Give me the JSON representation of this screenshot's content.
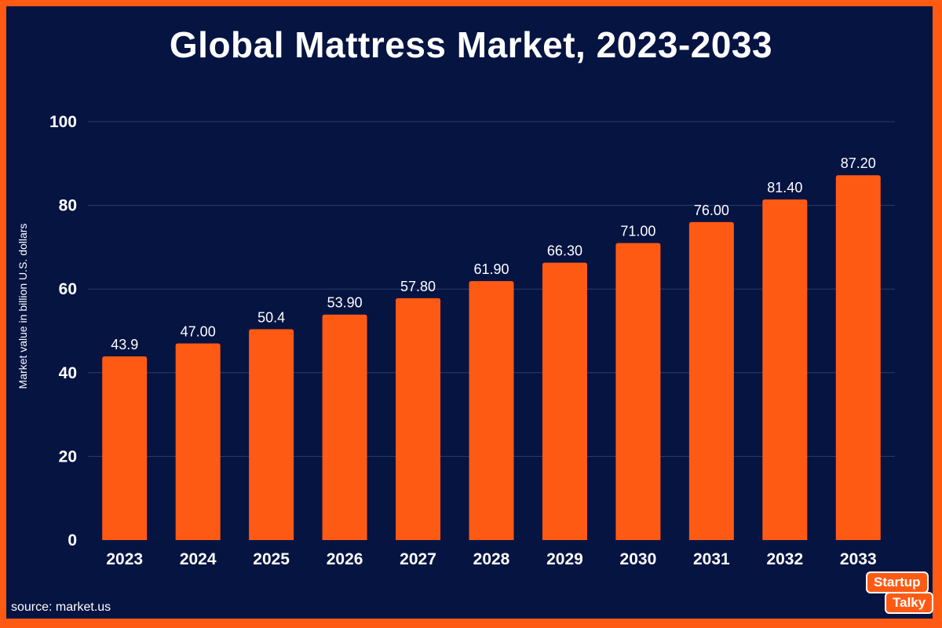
{
  "chart_data": {
    "type": "bar",
    "title": "Global Mattress Market, 2023-2033",
    "xlabel": "",
    "ylabel": "Market value in billion U.S. dollars",
    "categories": [
      "2023",
      "2024",
      "2025",
      "2026",
      "2027",
      "2028",
      "2029",
      "2030",
      "2031",
      "2032",
      "2033"
    ],
    "values": [
      43.9,
      47.0,
      50.4,
      53.9,
      57.8,
      61.9,
      66.3,
      71.0,
      76.0,
      81.4,
      87.2
    ],
    "value_labels": [
      "43.9",
      "47.00",
      "50.4",
      "53.90",
      "57.80",
      "61.90",
      "66.30",
      "71.00",
      "76.00",
      "81.40",
      "87.20"
    ],
    "ylim": [
      0,
      100
    ],
    "yticks": [
      "0",
      "20",
      "40",
      "60",
      "80",
      "100"
    ],
    "grid": true,
    "legend": "none"
  },
  "footer": {
    "source": "source: market.us"
  },
  "logo": {
    "line1": "Startup",
    "line2": "Talky"
  },
  "colors": {
    "background": "#061442",
    "frame": "#ff5a14",
    "bar": "#ff5a14",
    "text": "#ffffff",
    "grid": "#2c3a68"
  }
}
